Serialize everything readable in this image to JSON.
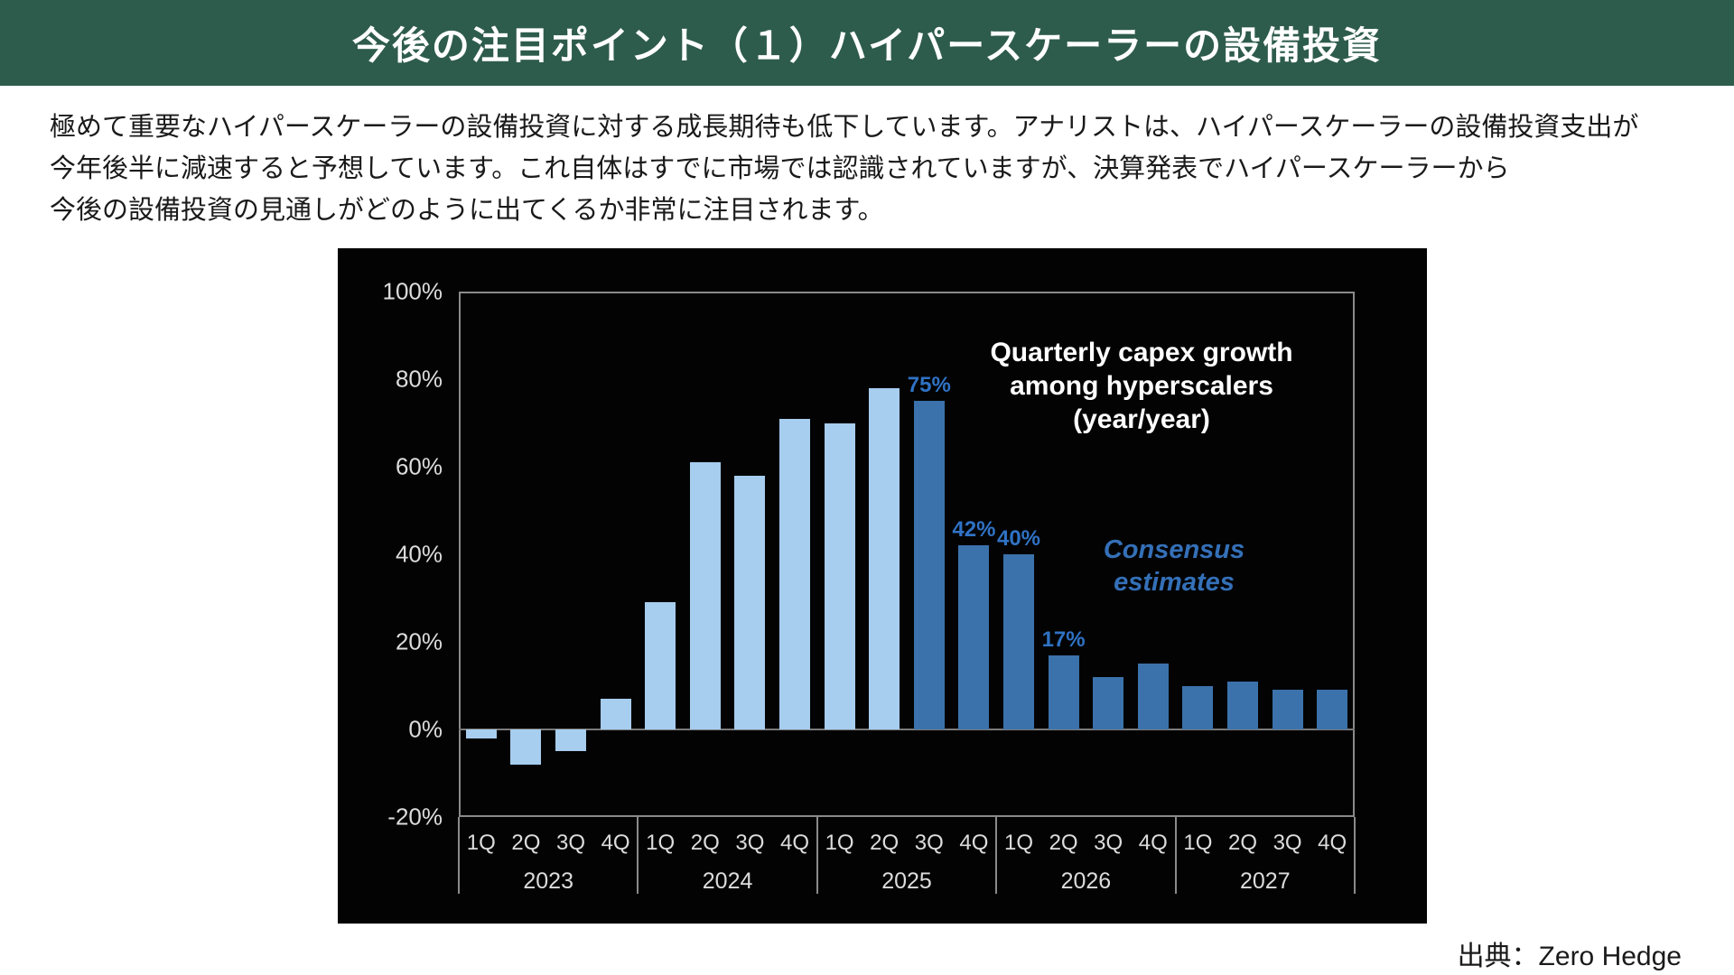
{
  "header": {
    "title": "今後の注目ポイント（１）ハイパースケーラーの設備投資",
    "background_color": "#2E5C4C"
  },
  "body": {
    "line1": "極めて重要なハイパースケーラーの設備投資に対する成長期待も低下しています。アナリストは、ハイパースケーラーの設備投資支出が",
    "line2": "今年後半に減速すると予想しています。これ自体はすでに市場では認識されていますが、決算発表でハイパースケーラーから",
    "line3": "今後の設備投資の見通しがどのように出てくるか非常に注目されます。"
  },
  "chart_data": {
    "type": "bar",
    "title_lines": [
      "Quarterly capex growth",
      "among hyperscalers",
      "(year/year)"
    ],
    "annotation_lines": [
      "Consensus",
      "estimates"
    ],
    "ylim": [
      -20,
      100
    ],
    "y_ticks": [
      "100%",
      "80%",
      "60%",
      "40%",
      "20%",
      "0%",
      "-20%"
    ],
    "years": [
      "2023",
      "2024",
      "2025",
      "2026",
      "2027"
    ],
    "quarters": [
      "1Q",
      "2Q",
      "3Q",
      "4Q"
    ],
    "points": [
      {
        "year": "2023",
        "quarter": "1Q",
        "value": -2,
        "segment": "actual"
      },
      {
        "year": "2023",
        "quarter": "2Q",
        "value": -8,
        "segment": "actual"
      },
      {
        "year": "2023",
        "quarter": "3Q",
        "value": -5,
        "segment": "actual"
      },
      {
        "year": "2023",
        "quarter": "4Q",
        "value": 7,
        "segment": "actual"
      },
      {
        "year": "2024",
        "quarter": "1Q",
        "value": 29,
        "segment": "actual"
      },
      {
        "year": "2024",
        "quarter": "2Q",
        "value": 61,
        "segment": "actual"
      },
      {
        "year": "2024",
        "quarter": "3Q",
        "value": 58,
        "segment": "actual"
      },
      {
        "year": "2024",
        "quarter": "4Q",
        "value": 71,
        "segment": "actual"
      },
      {
        "year": "2025",
        "quarter": "1Q",
        "value": 70,
        "segment": "actual"
      },
      {
        "year": "2025",
        "quarter": "2Q",
        "value": 78,
        "segment": "actual"
      },
      {
        "year": "2025",
        "quarter": "3Q",
        "value": 75,
        "segment": "estimate",
        "label": "75%"
      },
      {
        "year": "2025",
        "quarter": "4Q",
        "value": 42,
        "segment": "estimate",
        "label": "42%"
      },
      {
        "year": "2026",
        "quarter": "1Q",
        "value": 40,
        "segment": "estimate",
        "label": "40%"
      },
      {
        "year": "2026",
        "quarter": "2Q",
        "value": 17,
        "segment": "estimate",
        "label": "17%"
      },
      {
        "year": "2026",
        "quarter": "3Q",
        "value": 12,
        "segment": "estimate"
      },
      {
        "year": "2026",
        "quarter": "4Q",
        "value": 15,
        "segment": "estimate"
      },
      {
        "year": "2027",
        "quarter": "1Q",
        "value": 10,
        "segment": "estimate"
      },
      {
        "year": "2027",
        "quarter": "2Q",
        "value": 11,
        "segment": "estimate"
      },
      {
        "year": "2027",
        "quarter": "3Q",
        "value": 9,
        "segment": "estimate"
      },
      {
        "year": "2027",
        "quarter": "4Q",
        "value": 9,
        "segment": "estimate"
      }
    ],
    "colors": {
      "background": "#030303",
      "actual": "#A7CDEF",
      "estimate": "#3B72AB",
      "value_label": "#2F72C4",
      "annotation": "#3470B8",
      "axis_text": "#DCDCDC",
      "frame": "#8A8A8A",
      "zero_line": "#7A7A7A"
    }
  },
  "source": {
    "label": "出典：Zero Hedge"
  }
}
